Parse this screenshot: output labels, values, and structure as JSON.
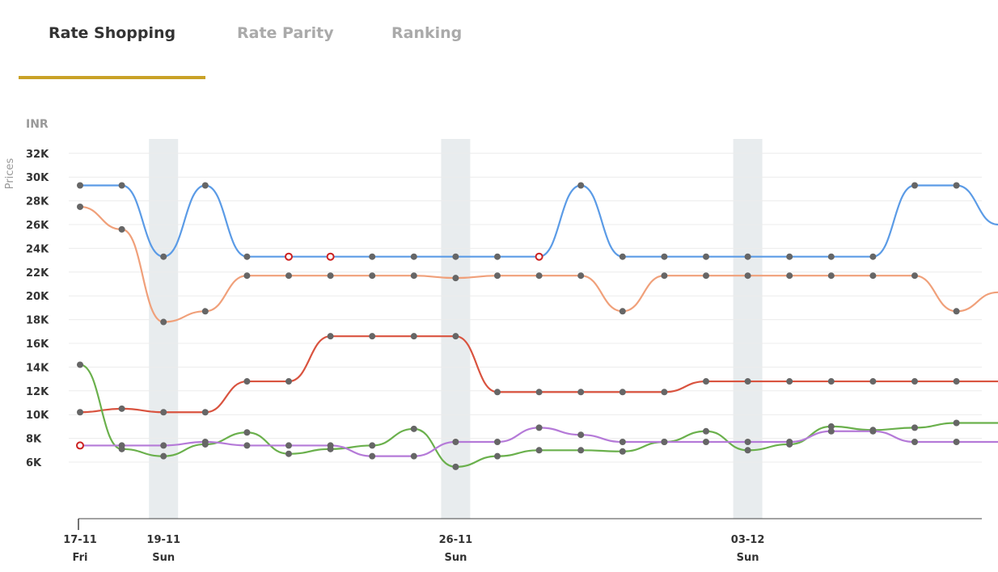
{
  "tabs": [
    {
      "label": "Rate Shopping",
      "active": true
    },
    {
      "label": "Rate Parity",
      "active": false
    },
    {
      "label": "Ranking",
      "active": false
    }
  ],
  "colors": {
    "accent": "#c9a227",
    "weekend_band": "#e8ecee",
    "marker": "#666666",
    "marker_hollow": "#cc2222"
  },
  "chart_data": {
    "type": "line",
    "unit_label": "INR",
    "ylabel": "Prices",
    "yticks": [
      "6K",
      "8K",
      "10K",
      "12K",
      "14K",
      "16K",
      "18K",
      "20K",
      "22K",
      "24K",
      "26K",
      "28K",
      "30K",
      "32K"
    ],
    "ylim": [
      0,
      32000
    ],
    "x_dates": [
      "17-11",
      "18-11",
      "19-11",
      "20-11",
      "21-11",
      "22-11",
      "23-11",
      "24-11",
      "25-11",
      "26-11",
      "27-11",
      "28-11",
      "29-11",
      "30-11",
      "01-12",
      "02-12",
      "03-12",
      "04-12",
      "05-12",
      "06-12",
      "07-12",
      "08-12",
      "09-12"
    ],
    "xticks": [
      {
        "date": "17-11",
        "day": "Fri"
      },
      {
        "date": "19-11",
        "day": "Sun"
      },
      {
        "date": "26-11",
        "day": "Sun"
      },
      {
        "date": "03-12",
        "day": "Sun"
      }
    ],
    "weekend_bands": [
      "19-11",
      "26-11",
      "03-12"
    ],
    "grid": true,
    "series": [
      {
        "color": "#5b9be6",
        "values": [
          29300,
          29300,
          23300,
          29300,
          23300,
          23300,
          23300,
          23300,
          23300,
          23300,
          23300,
          23300,
          29300,
          23300,
          23300,
          23300,
          23300,
          23300,
          23300,
          23300,
          29300,
          29300,
          26000
        ],
        "hollow": [
          5,
          6,
          11
        ]
      },
      {
        "color": "#f0a07a",
        "values": [
          27500,
          25600,
          17800,
          18700,
          21700,
          21700,
          21700,
          21700,
          21700,
          21500,
          21700,
          21700,
          21700,
          18700,
          21700,
          21700,
          21700,
          21700,
          21700,
          21700,
          21700,
          18700,
          20300
        ],
        "hollow": []
      },
      {
        "color": "#d9533f",
        "values": [
          10200,
          10500,
          10200,
          10200,
          12800,
          12800,
          16600,
          16600,
          16600,
          16600,
          11900,
          11900,
          11900,
          11900,
          11900,
          12800,
          12800,
          12800,
          12800,
          12800,
          12800,
          12800,
          12800
        ],
        "hollow": []
      },
      {
        "color": "#6ab04c",
        "values": [
          14200,
          7100,
          6500,
          7500,
          8500,
          6700,
          7100,
          7400,
          8800,
          5600,
          6500,
          7000,
          7000,
          6900,
          7700,
          8600,
          7000,
          7500,
          9000,
          8700,
          8900,
          9300,
          9300
        ],
        "hollow": []
      },
      {
        "color": "#b57ad8",
        "values": [
          7400,
          7400,
          7400,
          7700,
          7400,
          7400,
          7400,
          6500,
          6500,
          7700,
          7700,
          8900,
          8300,
          7700,
          7700,
          7700,
          7700,
          7700,
          8600,
          8600,
          7700,
          7700,
          7700
        ],
        "hollow": [
          0
        ]
      }
    ]
  }
}
